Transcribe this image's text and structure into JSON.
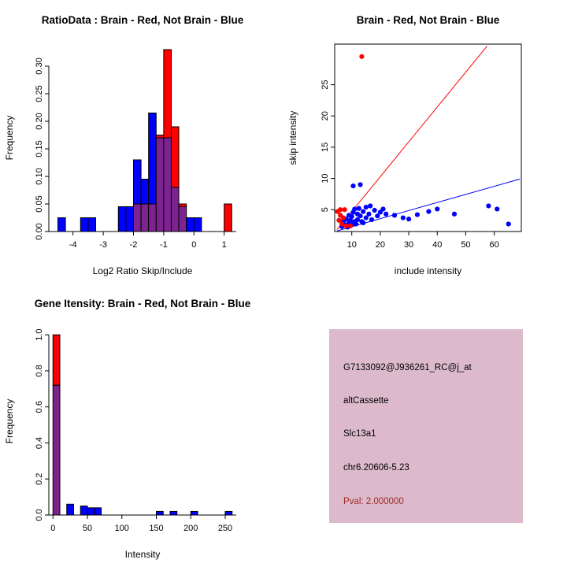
{
  "window": {
    "background": "#FFFFFF"
  },
  "colors": {
    "brain_red": "#FF0000",
    "not_brain_blue": "#0000FF",
    "overlap_purple": "#7D2390",
    "axis": "#000000",
    "info_box_bg": "#DCBACB",
    "pval_red": "#9E2A2A"
  },
  "chart_data": [
    {
      "id": "ratio-hist",
      "type": "bar",
      "title": "RatioData : Brain - Red, Not Brain - Blue",
      "xlabel": "Log2 Ratio Skip/Include",
      "ylabel": "Frequency",
      "xlim": [
        -4.8,
        1.4
      ],
      "ylim": [
        0,
        0.34
      ],
      "grid": false,
      "legend": "none",
      "xtick_vals": [
        -4,
        -3,
        -2,
        -1,
        0,
        1
      ],
      "xtick_labels": [
        "-4",
        "-3",
        "-2",
        "-1",
        "0",
        "1"
      ],
      "ytick_vals": [
        0,
        0.05,
        0.1,
        0.15,
        0.2,
        0.25,
        0.3
      ],
      "ytick_labels": [
        "0.00",
        "0.05",
        "0.10",
        "0.15",
        "0.20",
        "0.25",
        "0.30"
      ],
      "bin_width": 0.25,
      "bins": [
        {
          "x": -4.5,
          "blue": 0.025
        },
        {
          "x": -3.75,
          "blue": 0.025
        },
        {
          "x": -3.5,
          "blue": 0.025
        },
        {
          "x": -2.5,
          "blue": 0.045
        },
        {
          "x": -2.25,
          "blue": 0.045
        },
        {
          "x": -2.0,
          "blue": 0.13,
          "red": 0.05
        },
        {
          "x": -1.75,
          "blue": 0.095,
          "red": 0.05
        },
        {
          "x": -1.5,
          "blue": 0.215,
          "red": 0.05
        },
        {
          "x": -1.25,
          "blue": 0.17,
          "red": 0.175
        },
        {
          "x": -1.0,
          "blue": 0.17,
          "red": 0.33
        },
        {
          "x": -0.75,
          "blue": 0.08,
          "red": 0.19
        },
        {
          "x": -0.5,
          "blue": 0.045,
          "red": 0.05
        },
        {
          "x": -0.25,
          "blue": 0.025
        },
        {
          "x": 0.0,
          "blue": 0.025
        },
        {
          "x": 1.0,
          "red": 0.05
        }
      ]
    },
    {
      "id": "intensity-scatter",
      "type": "scatter",
      "title": "Brain - Red, Not Brain - Blue",
      "xlabel": "include intensity",
      "ylabel": "skip intensity",
      "xlim": [
        4,
        69.5
      ],
      "ylim": [
        1.5,
        31.5
      ],
      "grid": false,
      "legend": "none",
      "xtick_vals": [
        10,
        20,
        30,
        40,
        50,
        60
      ],
      "xtick_labels": [
        "10",
        "20",
        "30",
        "40",
        "50",
        "60"
      ],
      "ytick_vals": [
        5,
        10,
        15,
        20,
        25
      ],
      "ytick_labels": [
        "5",
        "10",
        "15",
        "20",
        "25"
      ],
      "red_points": [
        [
          5,
          4.7
        ],
        [
          5.5,
          3.3
        ],
        [
          6,
          4.1
        ],
        [
          6,
          5
        ],
        [
          6.5,
          2.7
        ],
        [
          7,
          3.7
        ],
        [
          7.5,
          5
        ],
        [
          8,
          2.4
        ],
        [
          9.5,
          2.4
        ],
        [
          13.5,
          29.5
        ]
      ],
      "blue_points": [
        [
          6.5,
          2.3
        ],
        [
          7,
          3.1
        ],
        [
          7.5,
          2.6
        ],
        [
          8,
          3.5
        ],
        [
          8.5,
          2.2
        ],
        [
          9,
          2.9
        ],
        [
          9,
          4.1
        ],
        [
          9.5,
          3.3
        ],
        [
          10,
          2.6
        ],
        [
          10,
          3.9
        ],
        [
          10.5,
          4.6
        ],
        [
          10.5,
          8.8
        ],
        [
          11,
          3.1
        ],
        [
          11,
          5.1
        ],
        [
          11.5,
          2.7
        ],
        [
          12,
          4.3
        ],
        [
          12,
          3.4
        ],
        [
          12.5,
          5.2
        ],
        [
          13,
          9
        ],
        [
          13,
          4
        ],
        [
          13.5,
          3.1
        ],
        [
          14,
          4.7
        ],
        [
          14,
          2.9
        ],
        [
          15,
          5.4
        ],
        [
          15,
          3.7
        ],
        [
          16,
          4.3
        ],
        [
          16.5,
          5.6
        ],
        [
          17,
          3.4
        ],
        [
          18,
          4.9
        ],
        [
          19,
          4
        ],
        [
          20,
          4.6
        ],
        [
          21,
          5.1
        ],
        [
          22,
          4.3
        ],
        [
          25,
          4.1
        ],
        [
          28,
          3.7
        ],
        [
          30,
          3.5
        ],
        [
          33,
          4.2
        ],
        [
          37,
          4.7
        ],
        [
          40,
          5.1
        ],
        [
          46,
          4.3
        ],
        [
          58,
          5.6
        ],
        [
          61,
          5.1
        ],
        [
          65,
          2.7
        ]
      ],
      "red_line": [
        [
          4.8,
          1.8
        ],
        [
          57.5,
          31.2
        ]
      ],
      "blue_line": [
        [
          4.8,
          1.6
        ],
        [
          69,
          9.9
        ]
      ]
    },
    {
      "id": "gene-hist",
      "type": "bar",
      "title": "Gene Itensity: Brain - Red, Not Brain - Blue",
      "xlabel": "Intensity",
      "ylabel": "Frequency",
      "xlim": [
        -6,
        266
      ],
      "ylim": [
        0,
        1.04
      ],
      "grid": false,
      "legend": "none",
      "xtick_vals": [
        0,
        50,
        100,
        150,
        200,
        250
      ],
      "xtick_labels": [
        "0",
        "50",
        "100",
        "150",
        "200",
        "250"
      ],
      "ytick_vals": [
        0,
        0.2,
        0.4,
        0.6,
        0.8,
        1.0
      ],
      "ytick_labels": [
        "0.0",
        "0.2",
        "0.4",
        "0.6",
        "0.8",
        "1.0"
      ],
      "bin_width": 10,
      "bins": [
        {
          "x": 0,
          "blue": 0.72,
          "red": 1.0
        },
        {
          "x": 20,
          "blue": 0.06
        },
        {
          "x": 40,
          "blue": 0.05
        },
        {
          "x": 50,
          "blue": 0.04
        },
        {
          "x": 60,
          "blue": 0.04
        },
        {
          "x": 150,
          "blue": 0.02
        },
        {
          "x": 170,
          "blue": 0.02
        },
        {
          "x": 200,
          "blue": 0.02
        },
        {
          "x": 250,
          "blue": 0.02
        }
      ]
    }
  ],
  "info_panel": {
    "probe_id": "G7133092@J936261_RC@j_at",
    "splice_type": "altCassette",
    "gene": "Slc13a1",
    "location": "chr6.20606-5.23",
    "pval": "Pval: 2.000000"
  }
}
